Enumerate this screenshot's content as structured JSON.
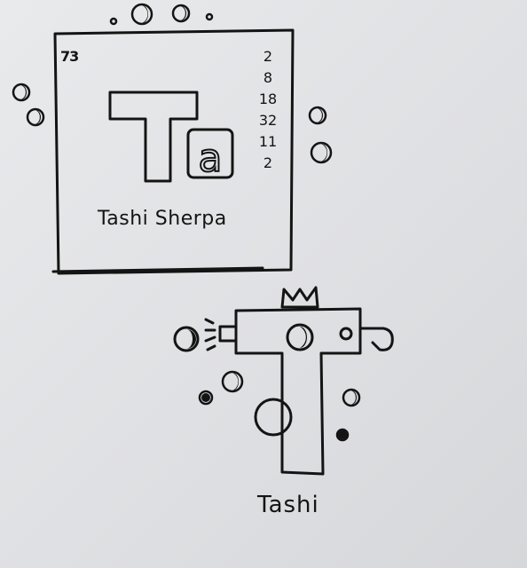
{
  "element_card": {
    "atomic_number": "73",
    "electron_shells": [
      "2",
      "8",
      "18",
      "32",
      "11",
      "2"
    ],
    "symbol_first": "T",
    "symbol_second": "a",
    "name_line": "Tashi Sherpa"
  },
  "robot_drawing": {
    "name": "Tashi"
  },
  "colors": {
    "ink": "#141414",
    "paper": "#e4e5e8"
  }
}
